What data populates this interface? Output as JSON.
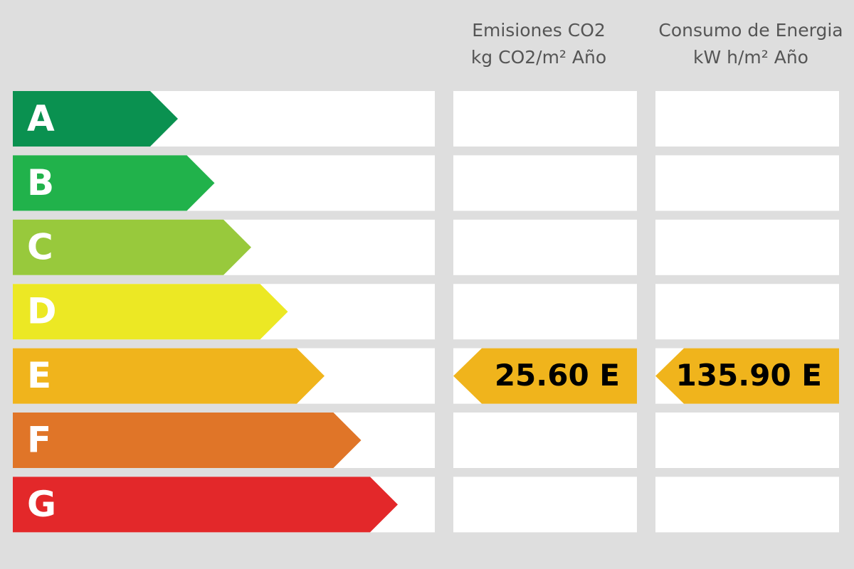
{
  "headers": [
    {
      "line1": "Emisiones CO2",
      "line2": "kg CO2/m² Año"
    },
    {
      "line1": "Consumo de Energia",
      "line2": "kW h/m² Año"
    }
  ],
  "ratings": [
    {
      "label": "A",
      "color": "#0a9150"
    },
    {
      "label": "B",
      "color": "#21b24b"
    },
    {
      "label": "C",
      "color": "#98c93c"
    },
    {
      "label": "D",
      "color": "#ece824"
    },
    {
      "label": "E",
      "color": "#f0b41c"
    },
    {
      "label": "F",
      "color": "#e07528"
    },
    {
      "label": "G",
      "color": "#e3282a"
    }
  ],
  "indicators": [
    {
      "label": "25.60 E",
      "color": "#f0b41c"
    },
    {
      "label": "135.90 E",
      "color": "#f0b41c"
    }
  ]
}
